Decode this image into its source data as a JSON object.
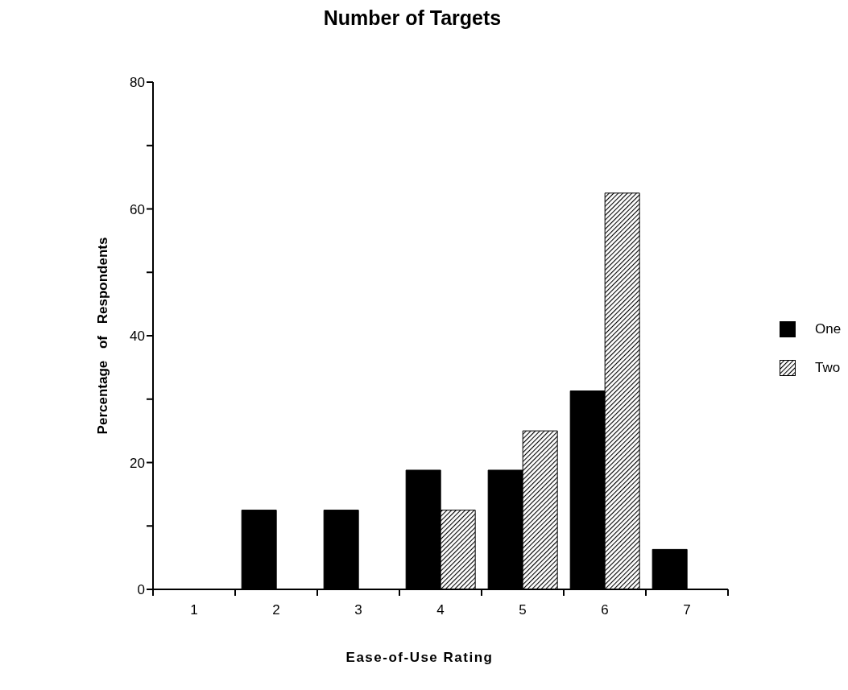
{
  "chart_data": {
    "type": "bar",
    "title": "Number of Targets",
    "xlabel": "Ease-of-Use Rating",
    "ylabel": "Percentage of Respondents",
    "categories": [
      "1",
      "2",
      "3",
      "4",
      "5",
      "6",
      "7"
    ],
    "series": [
      {
        "name": "One",
        "color": "#000000",
        "values": [
          0,
          12.5,
          12.5,
          18.8,
          18.8,
          31.3,
          6.3
        ]
      },
      {
        "name": "Two",
        "color": "#000000",
        "values": [
          0,
          0,
          0,
          12.5,
          25,
          62.5,
          0
        ]
      }
    ],
    "ylim": [
      0,
      80
    ],
    "yticks": [
      0,
      {
        "value": 10,
        "label": null
      },
      20,
      {
        "value": 30,
        "label": null
      },
      40,
      {
        "value": 50,
        "label": null
      },
      60,
      {
        "value": 70,
        "label": null
      },
      80
    ],
    "legend": "right"
  }
}
